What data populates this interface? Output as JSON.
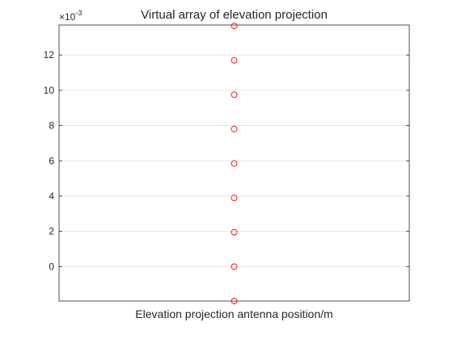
{
  "chart_data": {
    "type": "scatter",
    "title": "Virtual array of elevation projection",
    "xlabel": "Elevation projection antenna position/m",
    "ylabel": "",
    "exponent_label": "×10",
    "exponent_power": "-3",
    "xlim": [
      -1,
      1
    ],
    "ylim": [
      -1.95,
      13.7
    ],
    "yticks": [
      0,
      2,
      4,
      6,
      8,
      10,
      12
    ],
    "yticklabels": [
      "0",
      "2",
      "4",
      "6",
      "8",
      "10",
      "12"
    ],
    "grid": "horizontal",
    "series": [
      {
        "marker": "circle",
        "color": "#ff0000",
        "x": [
          0,
          0,
          0,
          0,
          0,
          0,
          0,
          0,
          0
        ],
        "y": [
          -1.95,
          0,
          1.95,
          3.9,
          5.85,
          7.8,
          9.75,
          11.7,
          13.65
        ]
      }
    ],
    "colors": {
      "axis": "#262626",
      "grid": "#dfdfdf",
      "marker": "#ff0000"
    }
  }
}
